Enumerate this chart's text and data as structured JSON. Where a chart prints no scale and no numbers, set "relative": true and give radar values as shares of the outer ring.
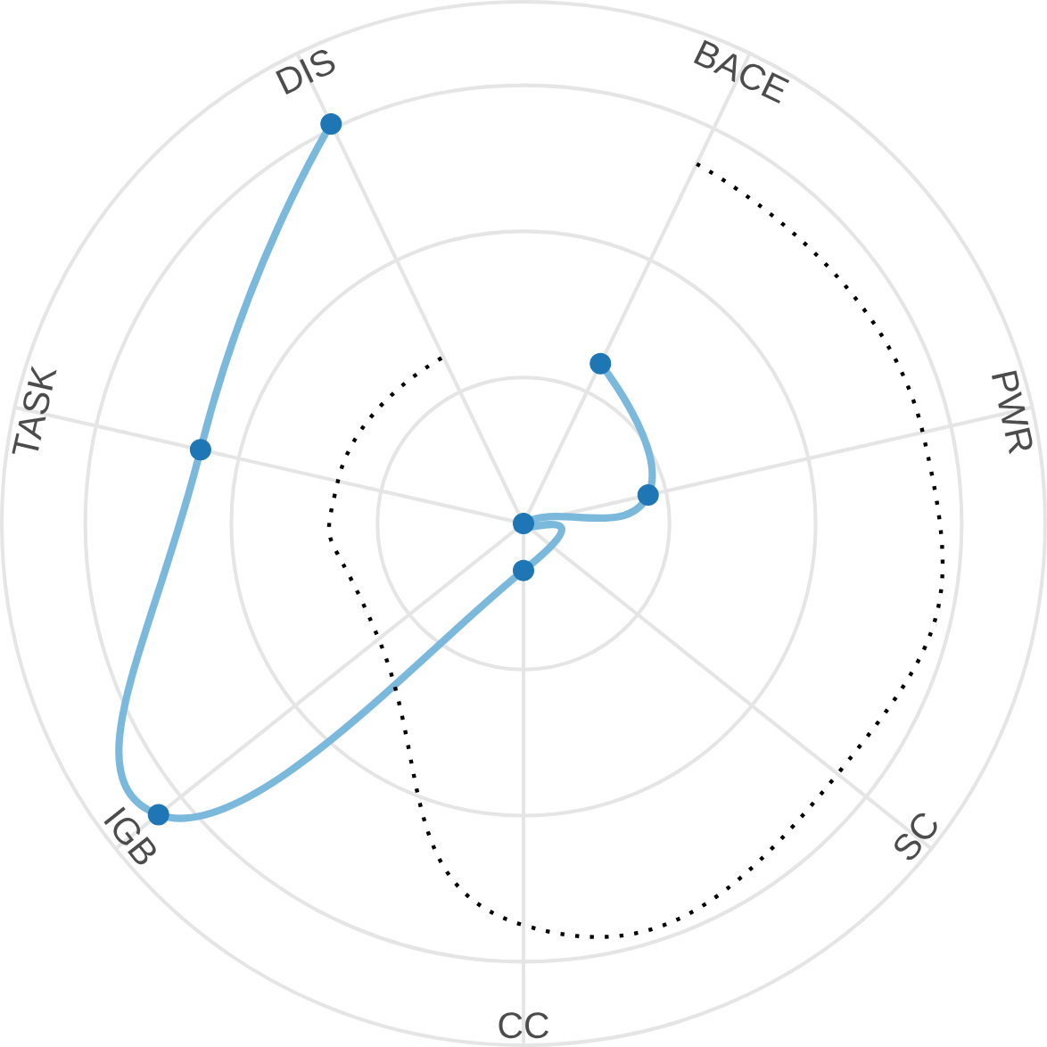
{
  "chart_data": {
    "type": "radar",
    "relative": true,
    "grid": true,
    "categories": [
      "BACE",
      "PWR",
      "SC",
      "CC",
      "IGB",
      "TASK",
      "DIS"
    ],
    "series": [
      {
        "color": "#7ab8dc",
        "marker": "circle",
        "line_style": "solid",
        "values": [
          0.34,
          0.245,
          0.0,
          0.09,
          0.895,
          0.635,
          0.85
        ]
      },
      {
        "color": "#000000",
        "marker": "none",
        "line_style": "dotted",
        "values": [
          0.765,
          0.785,
          0.77,
          0.77,
          0.355,
          0.365,
          0.354
        ]
      }
    ]
  }
}
